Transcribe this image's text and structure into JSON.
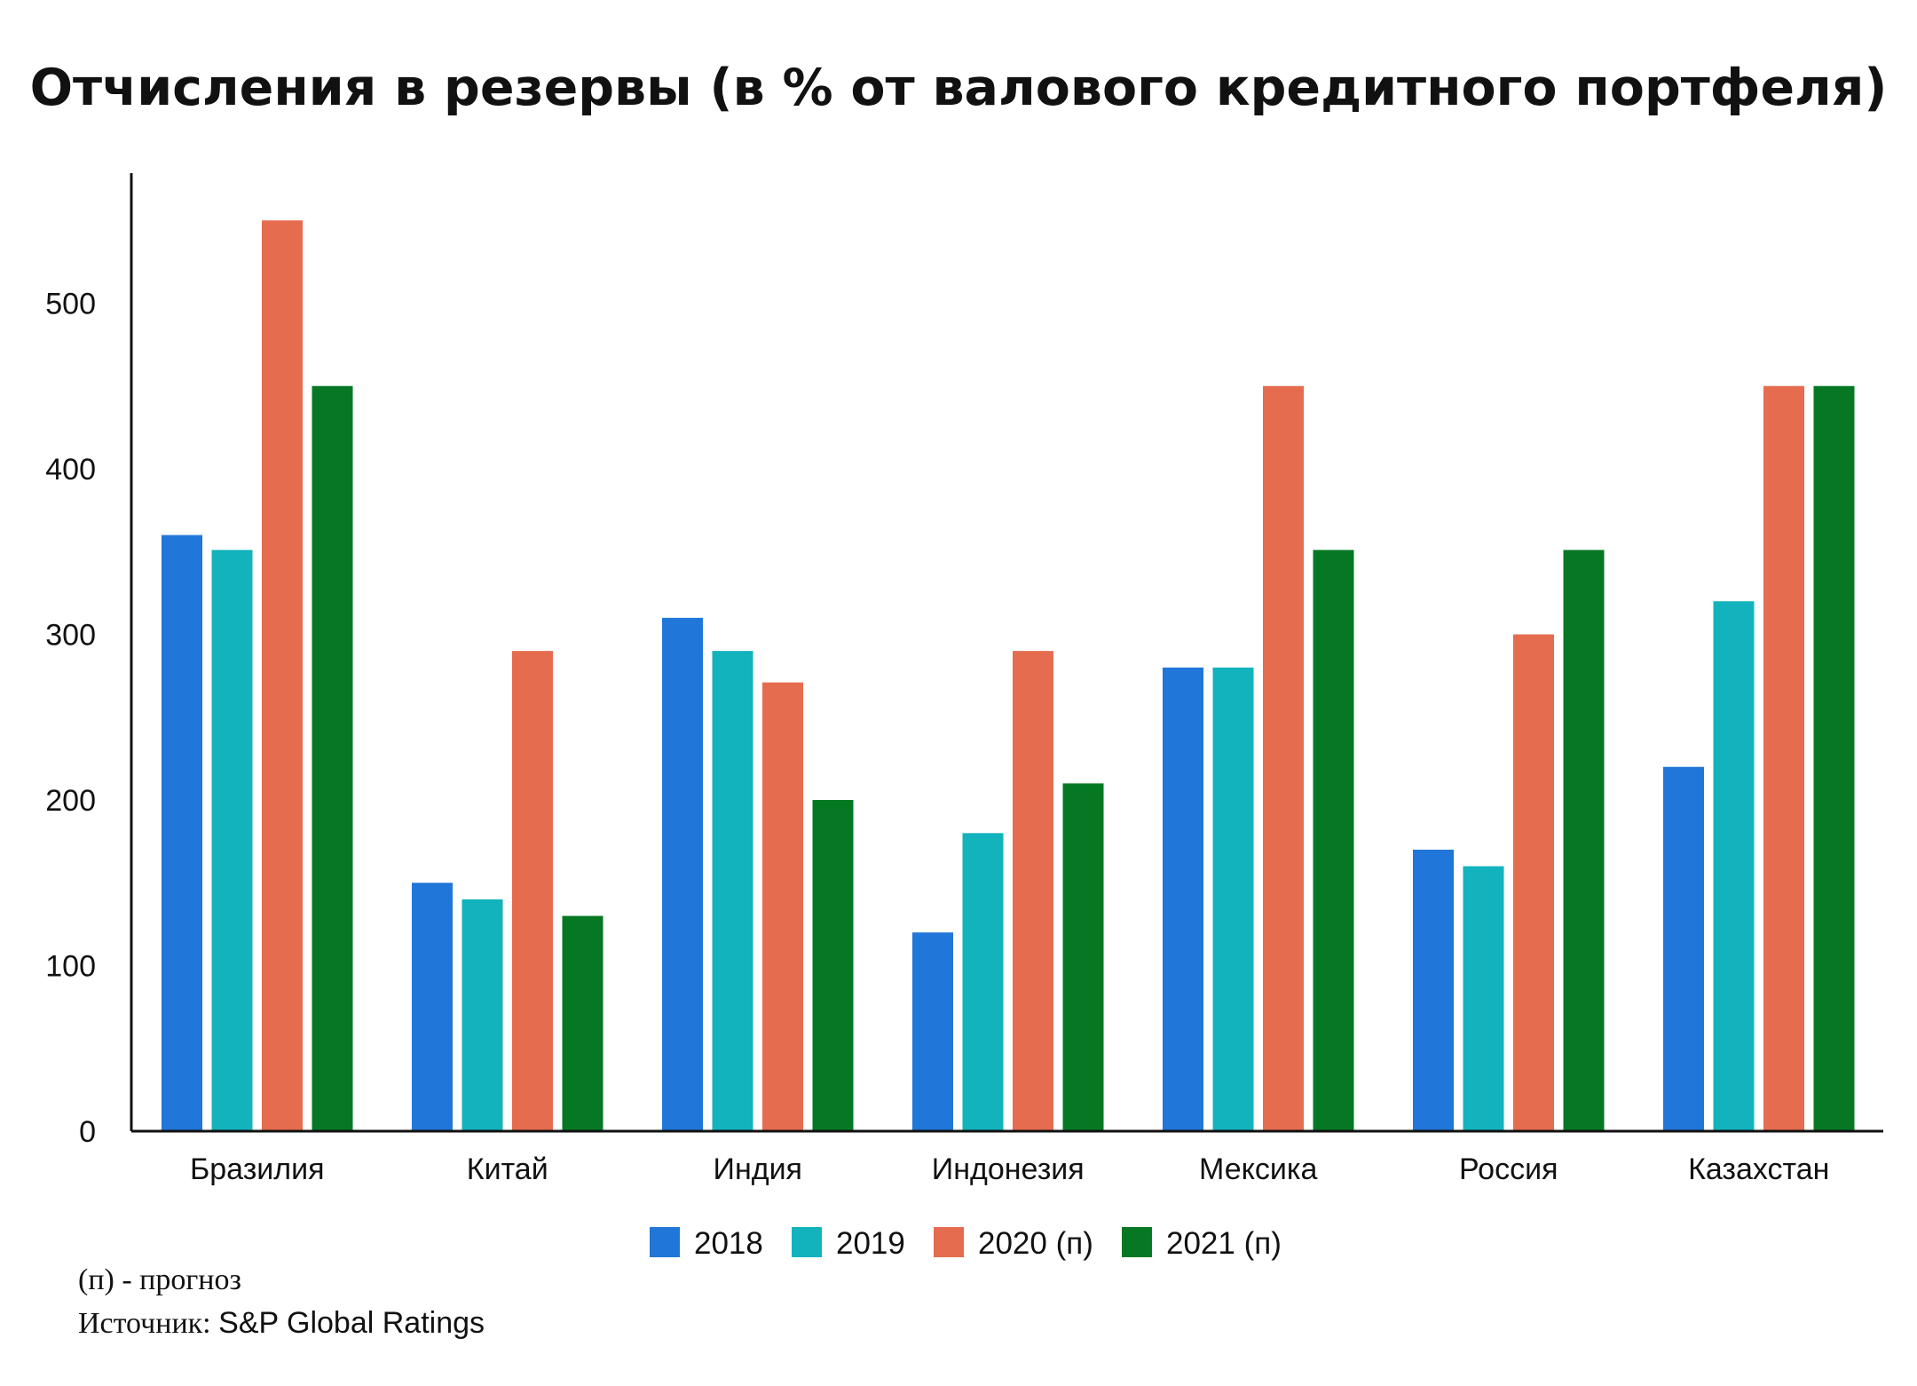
{
  "chart_data": {
    "type": "bar",
    "title": "Отчисления в резервы (в % от валового кредитного портфеля)",
    "xlabel": "",
    "ylabel": "",
    "ylim": [
      0,
      580
    ],
    "yticks": [
      0,
      100,
      200,
      300,
      400,
      500
    ],
    "grid": false,
    "legend_position": "bottom",
    "categories": [
      "Бразилия",
      "Китай",
      "Индия",
      "Индонезия",
      "Мексика",
      "Россия",
      "Казахстан"
    ],
    "series": [
      {
        "name": "2018",
        "color": "#2176d9",
        "values": [
          360,
          150,
          310,
          120,
          280,
          170,
          220
        ]
      },
      {
        "name": "2019",
        "color": "#12b3bd",
        "values": [
          351,
          140,
          290,
          180,
          280,
          160,
          320
        ]
      },
      {
        "name": "2020 (п)",
        "color": "#e66c4f",
        "values": [
          550,
          290,
          271,
          290,
          450,
          300,
          450
        ]
      },
      {
        "name": "2021 (п)",
        "color": "#067824",
        "values": [
          450,
          130,
          200,
          210,
          351,
          351,
          450
        ]
      }
    ]
  },
  "footnote": {
    "forecast_note": "(п) - прогноз",
    "source_label": "Источник: ",
    "source_name": "S&P Global Ratings"
  }
}
